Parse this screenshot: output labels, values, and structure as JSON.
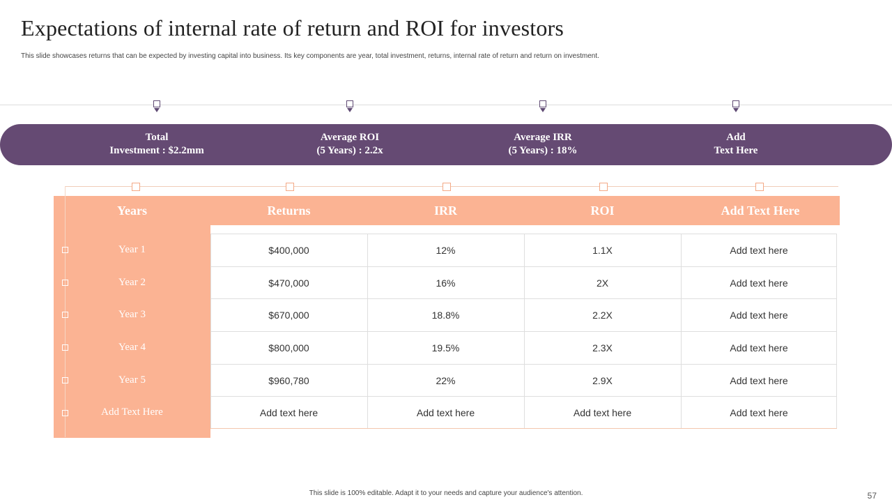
{
  "slide": {
    "title": "Expectations of internal rate of return and ROI for investors",
    "subtitle": "This slide showcases returns that can be expected by investing capital into business. Its key components are year, total investment, returns, internal rate of return and return on investment.",
    "footer": "This slide is 100% editable. Adapt it to your needs and capture your audience's attention.",
    "page_number": "57"
  },
  "band": {
    "items": [
      {
        "line1": "Total",
        "line2": "Investment : $2.2mm"
      },
      {
        "line1": "Average ROI",
        "line2": "(5 Years) : 2.2x"
      },
      {
        "line1": "Average IRR",
        "line2": "(5 Years) : 18%"
      },
      {
        "line1": "Add",
        "line2": "Text Here"
      }
    ]
  },
  "table": {
    "headers": [
      "Years",
      "Returns",
      "IRR",
      "ROI",
      "Add Text Here"
    ],
    "rows": [
      [
        "Year 1",
        "$400,000",
        "12%",
        "1.1X",
        "Add text here"
      ],
      [
        "Year 2",
        "$470,000",
        "16%",
        "2X",
        "Add text here"
      ],
      [
        "Year 3",
        "$670,000",
        "18.8%",
        "2.2X",
        "Add text here"
      ],
      [
        "Year 4",
        "$800,000",
        "19.5%",
        "2.3X",
        "Add text here"
      ],
      [
        "Year 5",
        "$960,780",
        "22%",
        "2.9X",
        "Add text here"
      ],
      [
        "Add Text Here",
        "Add text here",
        "Add text here",
        "Add text here",
        "Add text here"
      ]
    ]
  },
  "colors": {
    "purple": "#654a73",
    "peach": "#fbb393"
  }
}
